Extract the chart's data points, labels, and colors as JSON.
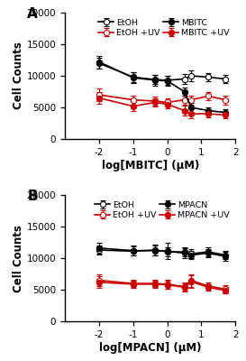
{
  "panel_A": {
    "xlabel": "log[MBITC] (μM)",
    "ylabel": "Cell Counts",
    "title": "A",
    "xlim": [
      -3,
      2
    ],
    "ylim": [
      0,
      20000
    ],
    "yticks": [
      0,
      5000,
      10000,
      15000,
      20000
    ],
    "xticks": [
      -2,
      -1,
      0,
      1,
      2
    ],
    "series_order": [
      "EtOH",
      "EtOH_UV",
      "MBITC",
      "MBITC_UV"
    ],
    "series": {
      "EtOH": {
        "x": [
          -2,
          -1,
          -0.35,
          0,
          0.5,
          0.7,
          1.2,
          1.7
        ],
        "y": [
          12000,
          9800,
          9400,
          9300,
          9500,
          10000,
          9800,
          9500
        ],
        "yerr": [
          800,
          800,
          700,
          700,
          800,
          900,
          700,
          700
        ],
        "color": "black",
        "marker": "o",
        "markerfacecolor": "white",
        "linewidth": 1.2,
        "label": "EtOH"
      },
      "MBITC": {
        "x": [
          -2,
          -1,
          -0.35,
          0,
          0.5,
          0.7,
          1.2,
          1.7
        ],
        "y": [
          12200,
          9700,
          9300,
          9200,
          7500,
          5000,
          4500,
          4200
        ],
        "yerr": [
          1000,
          900,
          800,
          800,
          700,
          700,
          500,
          500
        ],
        "color": "black",
        "marker": "o",
        "markerfacecolor": "black",
        "linewidth": 1.2,
        "label": "MBITC"
      },
      "EtOH_UV": {
        "x": [
          -2,
          -1,
          -0.35,
          0,
          0.5,
          0.7,
          1.2,
          1.7
        ],
        "y": [
          7000,
          6200,
          6000,
          5800,
          6200,
          6200,
          6800,
          6200
        ],
        "yerr": [
          1000,
          700,
          700,
          700,
          700,
          700,
          700,
          700
        ],
        "color": "#cc0000",
        "marker": "o",
        "markerfacecolor": "white",
        "linewidth": 1.2,
        "label": "EtOH +UV"
      },
      "MBITC_UV": {
        "x": [
          -2,
          -1,
          -0.35,
          0,
          0.5,
          0.7,
          1.2,
          1.7
        ],
        "y": [
          6500,
          5200,
          5800,
          5500,
          4500,
          4000,
          4000,
          3800
        ],
        "yerr": [
          900,
          700,
          700,
          700,
          800,
          700,
          600,
          500
        ],
        "color": "#cc0000",
        "marker": "o",
        "markerfacecolor": "#cc0000",
        "linewidth": 1.2,
        "label": "MBITC +UV"
      }
    }
  },
  "panel_B": {
    "xlabel": "log[MPACN] (μM)",
    "ylabel": "Cell Counts",
    "title": "B",
    "xlim": [
      -3,
      2
    ],
    "ylim": [
      0,
      20000
    ],
    "yticks": [
      0,
      5000,
      10000,
      15000,
      20000
    ],
    "xticks": [
      -2,
      -1,
      0,
      1,
      2
    ],
    "series_order": [
      "EtOH",
      "EtOH_UV",
      "MPACN",
      "MPACN_UV"
    ],
    "series": {
      "EtOH": {
        "x": [
          -2,
          -1,
          -0.35,
          0,
          0.5,
          0.7,
          1.2,
          1.7
        ],
        "y": [
          11300,
          11100,
          11300,
          11000,
          11000,
          10700,
          11000,
          10500
        ],
        "yerr": [
          700,
          700,
          800,
          700,
          700,
          700,
          700,
          700
        ],
        "color": "black",
        "marker": "o",
        "markerfacecolor": "white",
        "linewidth": 1.2,
        "label": "EtOH"
      },
      "MPACN": {
        "x": [
          -2,
          -1,
          -0.35,
          0,
          0.5,
          0.7,
          1.2,
          1.7
        ],
        "y": [
          11600,
          11200,
          11200,
          11100,
          10800,
          10500,
          10800,
          10300
        ],
        "yerr": [
          900,
          800,
          800,
          1300,
          800,
          700,
          700,
          700
        ],
        "color": "black",
        "marker": "o",
        "markerfacecolor": "black",
        "linewidth": 1.2,
        "label": "MPACN"
      },
      "EtOH_UV": {
        "x": [
          -2,
          -1,
          -0.35,
          0,
          0.5,
          0.7,
          1.2,
          1.7
        ],
        "y": [
          6500,
          6000,
          6000,
          5900,
          5500,
          6500,
          5600,
          5100
        ],
        "yerr": [
          900,
          600,
          600,
          700,
          600,
          1000,
          600,
          600
        ],
        "color": "#cc0000",
        "marker": "o",
        "markerfacecolor": "white",
        "linewidth": 1.2,
        "label": "EtOH +UV"
      },
      "MPACN_UV": {
        "x": [
          -2,
          -1,
          -0.35,
          0,
          0.5,
          0.7,
          1.2,
          1.7
        ],
        "y": [
          6200,
          5900,
          5900,
          5800,
          5400,
          6300,
          5400,
          4900
        ],
        "yerr": [
          900,
          600,
          600,
          700,
          600,
          1000,
          500,
          500
        ],
        "color": "#cc0000",
        "marker": "o",
        "markerfacecolor": "#cc0000",
        "linewidth": 1.2,
        "label": "MPACN +UV"
      }
    }
  },
  "fig_bg": "white",
  "ax_bg": "white",
  "markersize": 4.5,
  "capsize": 2.5,
  "elinewidth": 0.9
}
